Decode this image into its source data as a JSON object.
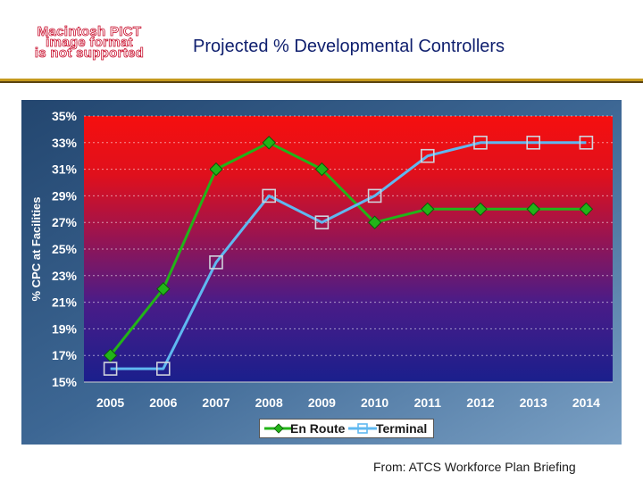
{
  "pict_placeholder": {
    "line1": "Macintosh PICT",
    "line2": "image format",
    "line3": "is not supported"
  },
  "slide": {
    "title": "Projected % Developmental Controllers",
    "source": "From: ATCS Workforce Plan Briefing"
  },
  "colors": {
    "en_route": "#22b418",
    "terminal": "#5fb8f0",
    "title": "#0f1f6e",
    "rule": "#c59a1e"
  },
  "chart_data": {
    "type": "line",
    "title": "",
    "xlabel": "",
    "ylabel": "% CPC at Facilities",
    "categories": [
      "2005",
      "2006",
      "2007",
      "2008",
      "2009",
      "2010",
      "2011",
      "2012",
      "2013",
      "2014"
    ],
    "ylim": [
      15,
      35
    ],
    "yticks": [
      15,
      17,
      19,
      21,
      23,
      25,
      27,
      29,
      31,
      33,
      35
    ],
    "ytick_labels": [
      "15%",
      "17%",
      "19%",
      "21%",
      "23%",
      "25%",
      "27%",
      "29%",
      "31%",
      "33%",
      "35%"
    ],
    "grid": true,
    "legend_position": "bottom",
    "series": [
      {
        "name": "En Route",
        "values": [
          17,
          22,
          31,
          33,
          31,
          27,
          28,
          28,
          28,
          28
        ],
        "marker": "diamond",
        "color": "#22b418"
      },
      {
        "name": "Terminal",
        "values": [
          16,
          16,
          24,
          29,
          27,
          29,
          32,
          33,
          33,
          33
        ],
        "marker": "square-open",
        "color": "#5fb8f0"
      }
    ]
  }
}
